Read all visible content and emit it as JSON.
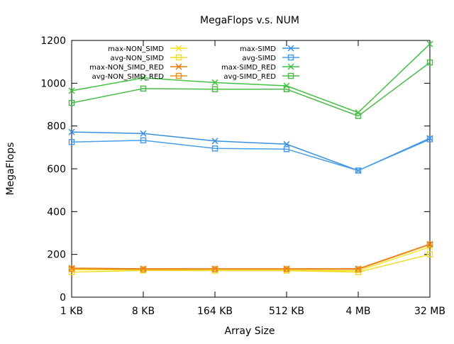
{
  "chart_data": {
    "type": "line",
    "title": "MegaFlops v.s. NUM",
    "xlabel": "Array Size",
    "ylabel": "MegaFlops",
    "categories": [
      "1 KB",
      "8 KB",
      "164 KB",
      "512 KB",
      "4 MB",
      "32 MB"
    ],
    "yticks": [
      "0",
      "200",
      "400",
      "600",
      "800",
      "1000",
      "1200"
    ],
    "ylim": [
      0,
      1200
    ],
    "grid": false,
    "legend_position": "top",
    "series": [
      {
        "name": "max-NON_SIMD",
        "marker": "x",
        "color": "#f5e51b",
        "values": [
          128,
          128,
          126,
          126,
          123,
          235
        ]
      },
      {
        "name": "avg-NON_SIMD",
        "marker": "square",
        "color": "#f0dc2c",
        "values": [
          117,
          125,
          124,
          124,
          117,
          200
        ]
      },
      {
        "name": "max-NON_SIMD_RED",
        "marker": "x",
        "color": "#e8760f",
        "values": [
          136,
          133,
          133,
          133,
          133,
          248
        ]
      },
      {
        "name": "avg-NON_SIMD_RED",
        "marker": "square",
        "color": "#e8901f",
        "values": [
          133,
          130,
          131,
          131,
          130,
          246
        ]
      },
      {
        "name": "max-SIMD",
        "marker": "x",
        "color": "#3a90e0",
        "values": [
          772,
          765,
          730,
          715,
          592,
          743
        ]
      },
      {
        "name": "avg-SIMD",
        "marker": "square",
        "color": "#4a9ee8",
        "values": [
          725,
          733,
          695,
          692,
          592,
          738
        ]
      },
      {
        "name": "max-SIMD_RED",
        "marker": "x",
        "color": "#42c142",
        "values": [
          965,
          1025,
          1003,
          988,
          863,
          1183
        ]
      },
      {
        "name": "avg-SIMD_RED",
        "marker": "square",
        "color": "#4cbb4c",
        "values": [
          908,
          975,
          972,
          972,
          847,
          1097
        ]
      }
    ]
  }
}
